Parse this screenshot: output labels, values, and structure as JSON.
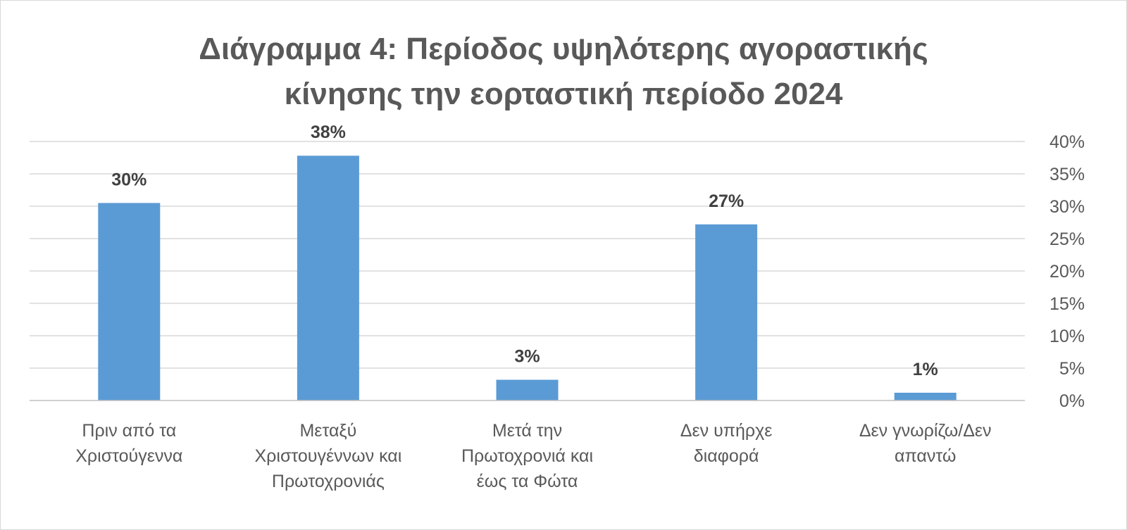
{
  "chart_data": {
    "type": "bar",
    "title_lines": [
      "Διάγραμμα 4: Περίοδος υψηλότερης αγοραστικής",
      "κίνησης την εορταστική περίοδο 2024"
    ],
    "categories": [
      [
        "Πριν από τα",
        "Χριστούγεννα"
      ],
      [
        "Μεταξύ",
        "Χριστουγέννων και",
        "Πρωτοχρονιάς"
      ],
      [
        "Μετά την",
        "Πρωτοχρονιά και",
        "έως τα Φώτα"
      ],
      [
        "Δεν υπήρχε",
        "διαφορά"
      ],
      [
        "Δεν γνωρίζω/Δεν",
        "απαντώ"
      ]
    ],
    "values": [
      30.5,
      37.8,
      3.2,
      27.2,
      1.2
    ],
    "data_labels": [
      "30%",
      "38%",
      "3%",
      "27%",
      "1%"
    ],
    "y_axis": {
      "position": "right",
      "min": 0,
      "max": 40,
      "step": 5,
      "tick_labels": [
        "0%",
        "5%",
        "10%",
        "15%",
        "20%",
        "25%",
        "30%",
        "35%",
        "40%"
      ]
    },
    "grid": true,
    "legend": "none",
    "colors": {
      "bar": "#5b9bd5",
      "title": "#595959",
      "gridline": "#d9d9d9"
    }
  }
}
